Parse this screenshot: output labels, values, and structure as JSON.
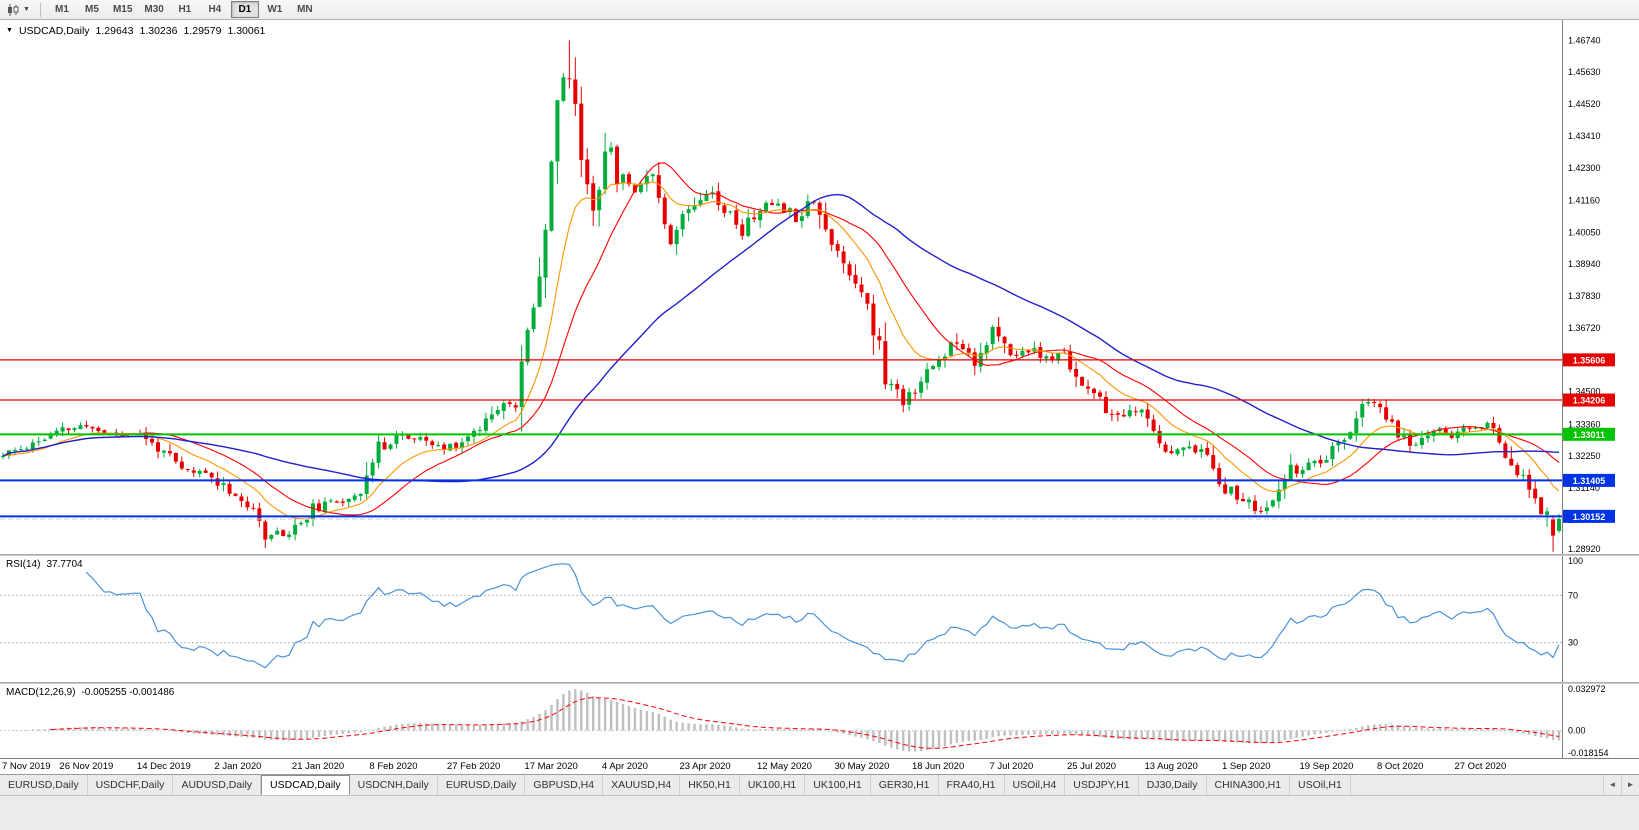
{
  "colors": {
    "up": "#00ad3c",
    "down": "#e80000",
    "ma_fast": "#ff0000",
    "ma_med": "#ff9500",
    "ma_slow": "#2020cc",
    "rsi": "#4b92db",
    "macd_hist": "#bfbfbf",
    "macd_signal": "#ff0000",
    "bid_line": "#c8c8c8"
  },
  "toolbar": {
    "timeframes": [
      "M1",
      "M5",
      "M15",
      "M30",
      "H1",
      "H4",
      "D1",
      "W1",
      "MN"
    ],
    "active_timeframe": "D1"
  },
  "legend": {
    "symbol": "USDCAD,Daily",
    "open": "1.29643",
    "high": "1.30236",
    "low": "1.29579",
    "close": "1.30061"
  },
  "rsi_panel": {
    "label": "RSI(14)",
    "value": "37.7704"
  },
  "macd_panel": {
    "label": "MACD(12,26,9)",
    "value": "-0.005255 -0.001486"
  },
  "tabs": {
    "scroll_left": "◄",
    "scroll_right": "►",
    "items": [
      {
        "label": "EURUSD,Daily",
        "active": false
      },
      {
        "label": "USDCHF,Daily",
        "active": false
      },
      {
        "label": "AUDUSD,Daily",
        "active": false
      },
      {
        "label": "USDCAD,Daily",
        "active": true
      },
      {
        "label": "USDCNH,Daily",
        "active": false
      },
      {
        "label": "EURUSD,Daily",
        "active": false
      },
      {
        "label": "GBPUSD,H4",
        "active": false
      },
      {
        "label": "XAUUSD,H4",
        "active": false
      },
      {
        "label": "HK50,H1",
        "active": false
      },
      {
        "label": "UK100,H1",
        "active": false
      },
      {
        "label": "UK100,H1",
        "active": false
      },
      {
        "label": "GER30,H1",
        "active": false
      },
      {
        "label": "FRA40,H1",
        "active": false
      },
      {
        "label": "USOil,H4",
        "active": false
      },
      {
        "label": "USDJPY,H1",
        "active": false
      },
      {
        "label": "DJ30,Daily",
        "active": false
      },
      {
        "label": "CHINA300,H1",
        "active": false
      },
      {
        "label": "USOil,H1",
        "active": false
      }
    ]
  },
  "chart_data": {
    "type": "candlestick",
    "symbol": "USDCAD",
    "timeframe": "Daily",
    "last_ohlc_display": {
      "open": "1.29643",
      "high": "1.30236",
      "low": "1.29579",
      "close": "1.30061"
    },
    "bid_price": 1.30061,
    "y_axis": {
      "range": [
        1.2884,
        1.4745
      ],
      "ticks": [
        "1.46740",
        "1.45630",
        "1.44520",
        "1.43410",
        "1.42300",
        "1.41160",
        "1.40050",
        "1.38940",
        "1.37830",
        "1.36720",
        "1.35610",
        "1.34500",
        "1.33360",
        "1.32250",
        "1.31140",
        "1.30030",
        "1.28920"
      ],
      "tick_values": [
        1.4674,
        1.4563,
        1.4452,
        1.4341,
        1.423,
        1.4116,
        1.4005,
        1.3894,
        1.3783,
        1.3672,
        1.3561,
        1.345,
        1.3336,
        1.3225,
        1.3114,
        1.3003,
        1.2892
      ]
    },
    "x_axis": {
      "bar_count": 262,
      "labels": [
        "7 Nov 2019",
        "26 Nov 2019",
        "14 Dec 2019",
        "2 Jan 2020",
        "21 Jan 2020",
        "8 Feb 2020",
        "27 Feb 2020",
        "17 Mar 2020",
        "4 Apr 2020",
        "23 Apr 2020",
        "12 May 2020",
        "30 May 2020",
        "18 Jun 2020",
        "7 Jul 2020",
        "25 Jul 2020",
        "13 Aug 2020",
        "1 Sep 2020",
        "19 Sep 2020",
        "8 Oct 2020",
        "27 Oct 2020"
      ],
      "bar_positions": [
        2,
        15,
        28,
        41,
        54,
        67,
        80,
        93,
        106,
        119,
        132,
        145,
        158,
        171,
        184,
        197,
        210,
        223,
        236,
        249
      ]
    },
    "horizontal_lines": [
      {
        "price": 1.35606,
        "label": "1.35606",
        "color": "#e60000",
        "width": 1.3
      },
      {
        "price": 1.34206,
        "label": "1.34206",
        "color": "#e60000",
        "width": 1.3
      },
      {
        "price": 1.33011,
        "label": "1.33011",
        "color": "#00c400",
        "width": 2
      },
      {
        "price": 1.31405,
        "label": "1.31405",
        "color": "#0033e6",
        "width": 2
      },
      {
        "price": 1.30152,
        "label": "1.30152",
        "color": "#0033e6",
        "width": 2
      }
    ],
    "moving_averages": [
      {
        "period": 20,
        "method": "sma",
        "color_key": "ma_fast",
        "width": 1.1
      },
      {
        "period": 12,
        "method": "ema",
        "color_key": "ma_med",
        "width": 1.1
      },
      {
        "period": 50,
        "method": "sma",
        "color_key": "ma_slow",
        "width": 1.4
      }
    ],
    "candles": {
      "seed": 11,
      "waypoints": [
        [
          0,
          1.3225
        ],
        [
          5,
          1.327
        ],
        [
          10,
          1.3315
        ],
        [
          14,
          1.333
        ],
        [
          18,
          1.33
        ],
        [
          22,
          1.331
        ],
        [
          26,
          1.3255
        ],
        [
          30,
          1.3175
        ],
        [
          34,
          1.3165
        ],
        [
          38,
          1.311
        ],
        [
          41,
          1.305
        ],
        [
          44,
          1.296
        ],
        [
          48,
          1.2955
        ],
        [
          52,
          1.304
        ],
        [
          56,
          1.3065
        ],
        [
          60,
          1.3105
        ],
        [
          63,
          1.3245
        ],
        [
          66,
          1.33
        ],
        [
          70,
          1.328
        ],
        [
          74,
          1.325
        ],
        [
          78,
          1.329
        ],
        [
          81,
          1.3355
        ],
        [
          84,
          1.343
        ],
        [
          86,
          1.339
        ],
        [
          88,
          1.365
        ],
        [
          91,
          1.403
        ],
        [
          93,
          1.448
        ],
        [
          95,
          1.456
        ],
        [
          97,
          1.428
        ],
        [
          99,
          1.409
        ],
        [
          101,
          1.432
        ],
        [
          103,
          1.421
        ],
        [
          106,
          1.416
        ],
        [
          109,
          1.422
        ],
        [
          112,
          1.399
        ],
        [
          115,
          1.409
        ],
        [
          118,
          1.416
        ],
        [
          121,
          1.409
        ],
        [
          124,
          1.401
        ],
        [
          127,
          1.409
        ],
        [
          130,
          1.411
        ],
        [
          133,
          1.406
        ],
        [
          136,
          1.413
        ],
        [
          139,
          1.396
        ],
        [
          142,
          1.387
        ],
        [
          145,
          1.377
        ],
        [
          148,
          1.35
        ],
        [
          151,
          1.342
        ],
        [
          154,
          1.349
        ],
        [
          157,
          1.356
        ],
        [
          160,
          1.364
        ],
        [
          163,
          1.356
        ],
        [
          166,
          1.366
        ],
        [
          169,
          1.357
        ],
        [
          172,
          1.36
        ],
        [
          175,
          1.356
        ],
        [
          178,
          1.358
        ],
        [
          181,
          1.348
        ],
        [
          184,
          1.341
        ],
        [
          187,
          1.335
        ],
        [
          190,
          1.339
        ],
        [
          193,
          1.331
        ],
        [
          196,
          1.323
        ],
        [
          199,
          1.327
        ],
        [
          202,
          1.322
        ],
        [
          205,
          1.312
        ],
        [
          208,
          1.307
        ],
        [
          211,
          1.303
        ],
        [
          213,
          1.306
        ],
        [
          216,
          1.317
        ],
        [
          219,
          1.319
        ],
        [
          222,
          1.321
        ],
        [
          225,
          1.329
        ],
        [
          228,
          1.339
        ],
        [
          230,
          1.341
        ],
        [
          233,
          1.333
        ],
        [
          236,
          1.326
        ],
        [
          240,
          1.332
        ],
        [
          243,
          1.33
        ],
        [
          246,
          1.332
        ],
        [
          249,
          1.333
        ],
        [
          251,
          1.329
        ],
        [
          253,
          1.32
        ],
        [
          255,
          1.314
        ],
        [
          257,
          1.309
        ],
        [
          259,
          1.301
        ],
        [
          260,
          1.295
        ],
        [
          261,
          1.3006
        ]
      ],
      "extreme_high": {
        "bar": 95,
        "price": 1.4674
      },
      "prev_bar_override": {
        "open": 1.3005,
        "high": 1.302,
        "low": 1.2892,
        "close": 1.2948
      },
      "last_bar": {
        "open": 1.29643,
        "high": 1.30236,
        "low": 1.29579,
        "close": 1.30061
      }
    },
    "rsi": {
      "period": 14,
      "current_value": 37.7704,
      "levels": [
        70,
        30
      ],
      "axis_ticks": [
        "100",
        "70",
        "30"
      ],
      "axis_values": [
        100,
        70,
        30
      ]
    },
    "macd": {
      "fast": 12,
      "slow": 26,
      "signal": 9,
      "current_values": [
        -0.005255,
        -0.001486
      ],
      "range": [
        -0.018154,
        0.032972
      ],
      "axis_ticks": [
        "0.032972",
        "0.00",
        "-0.018154"
      ],
      "axis_values": [
        0.032972,
        0,
        -0.018154
      ]
    }
  }
}
